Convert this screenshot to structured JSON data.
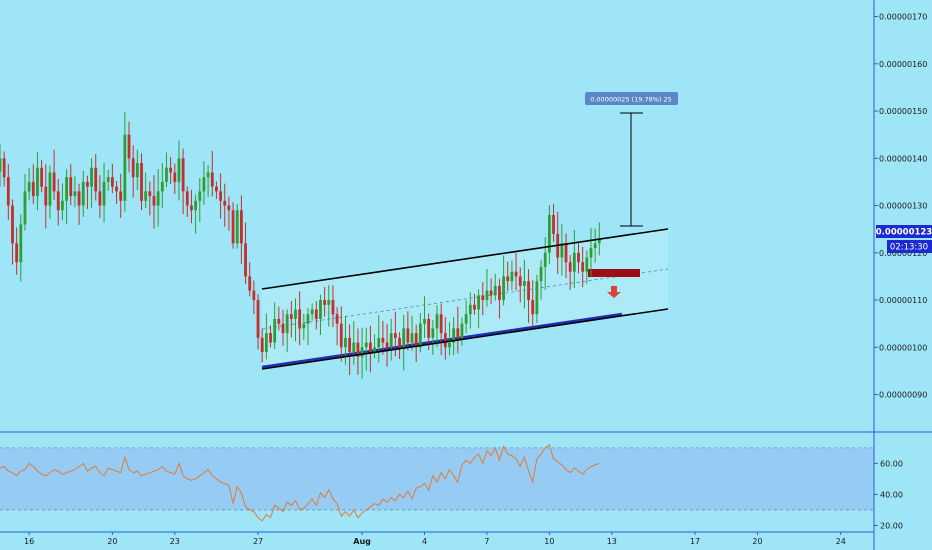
{
  "colors": {
    "background": "#9ee6f7",
    "up": "#2e9e33",
    "down": "#c2302e",
    "channel": "#000000",
    "support": "#1f2fb5",
    "rsi": "#e07a3a",
    "rsi_band": "#93c3f2",
    "axis": "#2a5fd6",
    "price_label_bg": "#1c2bd1",
    "measure_label_bg": "#5b86c8"
  },
  "chart_data": [
    {
      "type": "candlestick",
      "y_tick_labels": [
        "0.00000170",
        "0.00000160",
        "0.00000150",
        "0.00000140",
        "0.00000130",
        "0.00000120",
        "0.00000110",
        "0.00000100",
        "0.00000090"
      ],
      "y_ticks": [
        1.7e-06,
        1.6e-06,
        1.5e-06,
        1.4e-06,
        1.3e-06,
        1.2e-06,
        1.1e-06,
        1e-06,
        9e-07
      ],
      "ylim": [
        8.25e-07,
        1.735e-06
      ],
      "x_tick_labels": [
        "16",
        "20",
        "23",
        "27",
        "Aug",
        "4",
        "7",
        "10",
        "13",
        "17",
        "20",
        "24"
      ],
      "x_ticks_day": [
        -15,
        -11,
        -8,
        -4,
        1,
        4,
        7,
        10,
        13,
        17,
        20,
        24
      ],
      "last_price_label": "0.00000123",
      "countdown_label": "02:13:30",
      "measure_label": "0.00000025 (19.78%) 25",
      "candles_close": [
        1.4,
        1.36,
        1.3,
        1.22,
        1.18,
        1.26,
        1.33,
        1.35,
        1.32,
        1.38,
        1.34,
        1.3,
        1.37,
        1.33,
        1.29,
        1.31,
        1.36,
        1.32,
        1.33,
        1.3,
        1.35,
        1.34,
        1.38,
        1.33,
        1.3,
        1.35,
        1.36,
        1.34,
        1.33,
        1.31,
        1.45,
        1.4,
        1.36,
        1.39,
        1.31,
        1.33,
        1.32,
        1.3,
        1.33,
        1.35,
        1.38,
        1.37,
        1.35,
        1.4,
        1.33,
        1.3,
        1.29,
        1.31,
        1.33,
        1.36,
        1.37,
        1.34,
        1.33,
        1.31,
        1.3,
        1.29,
        1.22,
        1.29,
        1.22,
        1.15,
        1.12,
        1.1,
        1.02,
        0.99,
        1.03,
        1.01,
        1.06,
        1.05,
        1.03,
        1.07,
        1.06,
        1.08,
        1.04,
        1.05,
        1.07,
        1.08,
        1.06,
        1.1,
        1.09,
        1.1,
        1.07,
        1.05,
        1.0,
        1.02,
        0.99,
        1.01,
        0.98,
        1.0,
        1.01,
        0.99,
        1.0,
        1.02,
        1.01,
        1.0,
        1.03,
        1.02,
        1.0,
        1.04,
        1.01,
        1.03,
        1.0,
        1.05,
        1.06,
        1.02,
        1.04,
        1.07,
        1.03,
        1.0,
        1.01,
        1.04,
        1.02,
        1.05,
        1.07,
        1.09,
        1.08,
        1.11,
        1.1,
        1.12,
        1.11,
        1.13,
        1.1,
        1.15,
        1.14,
        1.16,
        1.15,
        1.13,
        1.14,
        1.1,
        1.07,
        1.14,
        1.17,
        1.2,
        1.28,
        1.24,
        1.19,
        1.22,
        1.18,
        1.16,
        1.2,
        1.18,
        1.16,
        1.19,
        1.21,
        1.22,
        1.23
      ],
      "x_range_day": [
        -16.4,
        25.6
      ]
    },
    {
      "type": "line",
      "series": [
        {
          "values": [
            57,
            58,
            55,
            54,
            52,
            55,
            56,
            60,
            58,
            55,
            53,
            52,
            54,
            56,
            55,
            53,
            54,
            55,
            56,
            58,
            60,
            55,
            57,
            58,
            54,
            52,
            57,
            56,
            55,
            54,
            64,
            56,
            54,
            55,
            52,
            53,
            54,
            55,
            56,
            58,
            55,
            54,
            53,
            60,
            52,
            50,
            49,
            50,
            52,
            54,
            56,
            52,
            50,
            48,
            47,
            46,
            34,
            45,
            41,
            32,
            30,
            29,
            25,
            23,
            27,
            25,
            33,
            31,
            29,
            35,
            33,
            36,
            30,
            31,
            34,
            37,
            33,
            41,
            38,
            43,
            37,
            34,
            26,
            29,
            26,
            30,
            25,
            28,
            30,
            32,
            34,
            33,
            37,
            35,
            38,
            36,
            40,
            38,
            42,
            37,
            44,
            45,
            47,
            43,
            52,
            48,
            54,
            50,
            56,
            52,
            48,
            59,
            62,
            60,
            64,
            66,
            60,
            68,
            65,
            70,
            62,
            71,
            66,
            65,
            63,
            58,
            64,
            55,
            48,
            63,
            66,
            70,
            72,
            63,
            61,
            59,
            56,
            54,
            57,
            55,
            53,
            56,
            58,
            59,
            60
          ]
        }
      ],
      "y_tick_labels": [
        "60.00",
        "40.00",
        "20.00"
      ],
      "y_ticks": [
        60,
        40,
        20
      ],
      "ylim": [
        19,
        77
      ],
      "band": [
        30,
        70
      ]
    }
  ]
}
